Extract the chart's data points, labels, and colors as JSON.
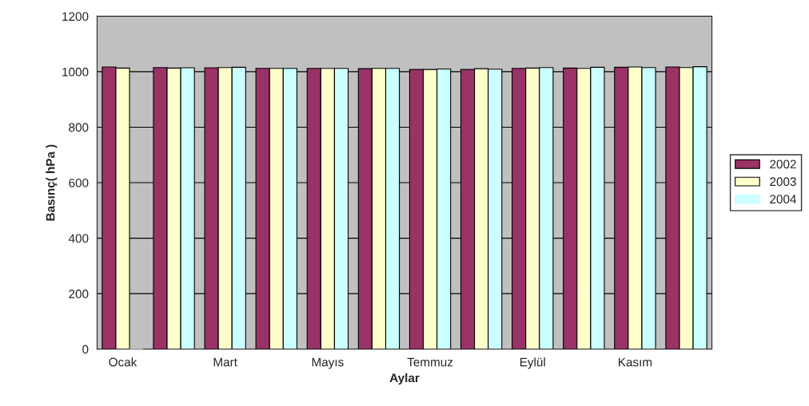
{
  "chart_data": {
    "type": "bar",
    "xlabel": "Aylar",
    "ylabel": "Basınç( hPa )",
    "categories": [
      "Ocak",
      null,
      "Mart",
      null,
      "Mayıs",
      null,
      "Temmuz",
      null,
      "Eylül",
      null,
      "Kasım",
      null
    ],
    "series": [
      {
        "name": "2002",
        "color": "#993366",
        "values": [
          1017,
          1015,
          1014,
          1012,
          1012,
          1011,
          1008,
          1008,
          1012,
          1013,
          1016,
          1017
        ]
      },
      {
        "name": "2003",
        "color": "#ffffcc",
        "values": [
          1013,
          1013,
          1015,
          1012,
          1012,
          1012,
          1008,
          1011,
          1013,
          1012,
          1017,
          1015
        ]
      },
      {
        "name": "2004",
        "color": "#ccffff",
        "values": [
          0,
          1014,
          1016,
          1012,
          1012,
          1012,
          1010,
          1009,
          1015,
          1016,
          1015,
          1018
        ]
      }
    ],
    "ylim": [
      0,
      1200
    ],
    "yticks": [
      0,
      200,
      400,
      600,
      800,
      1000,
      1200
    ],
    "grid": "y",
    "legend": "right"
  }
}
